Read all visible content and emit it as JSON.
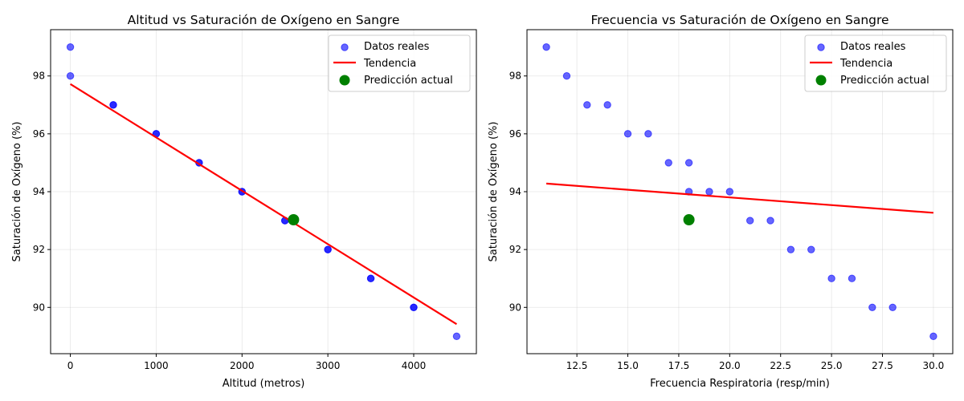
{
  "chart_data": [
    {
      "type": "scatter",
      "title": "Altitud vs Saturación de Oxígeno en Sangre",
      "xlabel": "Altitud (metros)",
      "ylabel": "Saturación de Oxígeno (%)",
      "xlim": [
        -230,
        4730
      ],
      "ylim": [
        88.4,
        99.6
      ],
      "xticks": [
        0,
        1000,
        2000,
        3000,
        4000
      ],
      "xtick_labels": [
        "0",
        "1000",
        "2000",
        "3000",
        "4000"
      ],
      "yticks": [
        90,
        92,
        94,
        96,
        98
      ],
      "ytick_labels": [
        "90",
        "92",
        "94",
        "96",
        "98"
      ],
      "grid": true,
      "legend_position": "top-right",
      "legend": [
        "Datos reales",
        "Tendencia",
        "Predicción actual"
      ],
      "series": [
        {
          "name": "Datos reales",
          "kind": "scatter",
          "color": "#0000ff",
          "points": [
            [
              0,
              99
            ],
            [
              0,
              98
            ],
            [
              500,
              97
            ],
            [
              500,
              97
            ],
            [
              1000,
              96
            ],
            [
              1000,
              96
            ],
            [
              1500,
              95
            ],
            [
              1500,
              95
            ],
            [
              2000,
              94
            ],
            [
              2000,
              94
            ],
            [
              2500,
              93
            ],
            [
              2500,
              93
            ],
            [
              3000,
              92
            ],
            [
              3000,
              92
            ],
            [
              3500,
              91
            ],
            [
              3500,
              91
            ],
            [
              4000,
              90
            ],
            [
              4000,
              90
            ],
            [
              4500,
              89
            ]
          ]
        },
        {
          "name": "Tendencia",
          "kind": "line",
          "color": "#ff0000",
          "points": [
            [
              0,
              97.72
            ],
            [
              4500,
              89.42
            ]
          ]
        },
        {
          "name": "Predicción actual",
          "kind": "marker",
          "color": "#008000",
          "points": [
            [
              2600,
              93.03
            ]
          ]
        }
      ]
    },
    {
      "type": "scatter",
      "title": "Frecuencia vs Saturación de Oxígeno en Sangre",
      "xlabel": "Frecuencia Respiratoria (resp/min)",
      "ylabel": "Saturación de Oxígeno (%)",
      "xlim": [
        10.05,
        30.95
      ],
      "ylim": [
        88.4,
        99.6
      ],
      "xticks": [
        12.5,
        15.0,
        17.5,
        20.0,
        22.5,
        25.0,
        27.5,
        30.0
      ],
      "xtick_labels": [
        "12.5",
        "15.0",
        "17.5",
        "20.0",
        "22.5",
        "25.0",
        "27.5",
        "30.0"
      ],
      "yticks": [
        90,
        92,
        94,
        96,
        98
      ],
      "ytick_labels": [
        "90",
        "92",
        "94",
        "96",
        "98"
      ],
      "grid": true,
      "legend_position": "top-right",
      "legend": [
        "Datos reales",
        "Tendencia",
        "Predicción actual"
      ],
      "series": [
        {
          "name": "Datos reales",
          "kind": "scatter",
          "color": "#0000ff",
          "points": [
            [
              11,
              99
            ],
            [
              12,
              98
            ],
            [
              13,
              97
            ],
            [
              14,
              97
            ],
            [
              15,
              96
            ],
            [
              16,
              96
            ],
            [
              17,
              95
            ],
            [
              18,
              95
            ],
            [
              18,
              94
            ],
            [
              19,
              94
            ],
            [
              20,
              94
            ],
            [
              21,
              93
            ],
            [
              22,
              93
            ],
            [
              23,
              92
            ],
            [
              24,
              92
            ],
            [
              25,
              91
            ],
            [
              26,
              91
            ],
            [
              27,
              90
            ],
            [
              28,
              90
            ],
            [
              30,
              89
            ]
          ]
        },
        {
          "name": "Tendencia",
          "kind": "line",
          "color": "#ff0000",
          "points": [
            [
              11,
              94.28
            ],
            [
              30,
              93.27
            ]
          ]
        },
        {
          "name": "Predicción actual",
          "kind": "marker",
          "color": "#008000",
          "points": [
            [
              18,
              93.03
            ]
          ]
        }
      ]
    }
  ]
}
